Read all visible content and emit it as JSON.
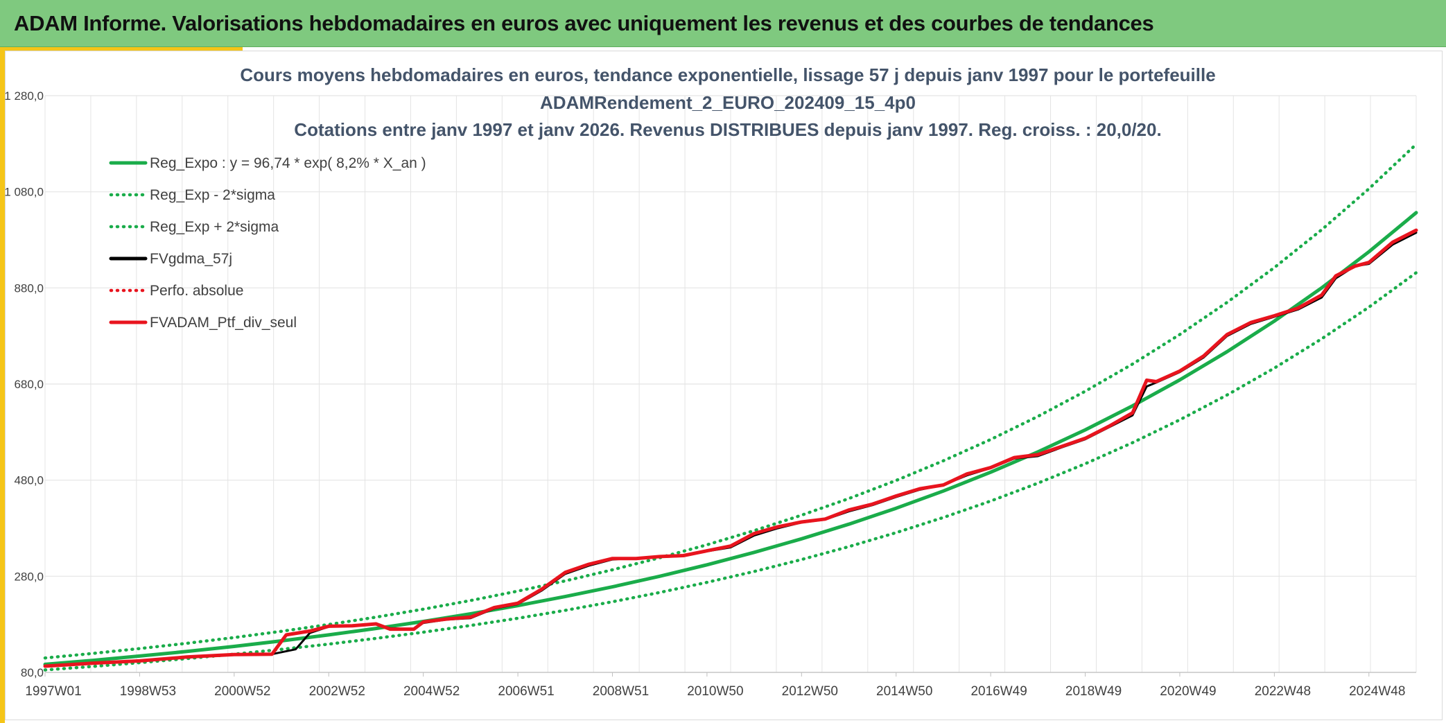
{
  "banner": {
    "title": "ADAM Informe. Valorisations hebdomadaires en euros avec uniquement les revenus et des courbes de tendances"
  },
  "colors": {
    "banner_bg": "#7fc97f",
    "accent": "#f5c518",
    "trend": "#1aac4a",
    "portfolio": "#e8141e",
    "smooth": "#000000",
    "grid": "#e4e4e4",
    "title": "#44546a"
  },
  "chart_data": {
    "type": "line",
    "title": [
      "Cours moyens hebdomadaires en euros, tendance exponentielle, lissage 57 j depuis janv 1997 pour le portefeuille",
      "ADAMRendement_2_EURO_202409_15_4p0",
      "Cotations entre janv 1997 et janv 2026. Revenus DISTRIBUES depuis janv 1997. Reg. croiss. : 20,0/20."
    ],
    "xlabel": "",
    "ylabel": "",
    "xlim": [
      1997.0,
      2026.0
    ],
    "ylim": [
      80,
      1280
    ],
    "ytick_values": [
      80,
      280,
      480,
      680,
      880,
      1080,
      1280
    ],
    "ytick_labels": [
      "80,0",
      "280,0",
      "480,0",
      "680,0",
      "880,0",
      "1 080,0",
      "1 280,0"
    ],
    "xtick_values": [
      1997.0,
      1999.0,
      2001.0,
      2003.0,
      2005.0,
      2007.0,
      2009.0,
      2011.0,
      2013.0,
      2015.0,
      2017.0,
      2019.0,
      2021.0,
      2023.0,
      2025.0
    ],
    "xtick_labels": [
      "1997W01",
      "1998W53",
      "2000W52",
      "2002W52",
      "2004W52",
      "2006W51",
      "2008W51",
      "2010W50",
      "2012W50",
      "2014W50",
      "2016W49",
      "2018W49",
      "2020W49",
      "2022W48",
      "2024W48"
    ],
    "grid": true,
    "legend_position": "top-left",
    "legend": [
      {
        "label": "Reg_Expo : y = 96,74 * exp( 8,2% *  X_an )",
        "style": "solid",
        "color": "#1aac4a"
      },
      {
        "label": "Reg_Exp - 2*sigma",
        "style": "dotted",
        "color": "#1aac4a"
      },
      {
        "label": "Reg_Exp + 2*sigma",
        "style": "dotted",
        "color": "#1aac4a"
      },
      {
        "label": "FVgdma_57j",
        "style": "solid",
        "color": "#000000"
      },
      {
        "label": "Perfo. absolue",
        "style": "dotted",
        "color": "#e8141e"
      },
      {
        "label": "FVADAM_Ptf_div_seul",
        "style": "solid",
        "color": "#e8141e"
      }
    ],
    "series": [
      {
        "name": "Reg_Expo",
        "x": [
          1997.0,
          1998.0,
          1999.0,
          2000.0,
          2001.0,
          2002.0,
          2003.0,
          2004.0,
          2005.0,
          2006.0,
          2007.0,
          2008.0,
          2009.0,
          2010.0,
          2011.0,
          2012.0,
          2013.0,
          2014.0,
          2015.0,
          2016.0,
          2017.0,
          2018.0,
          2019.0,
          2020.0,
          2021.0,
          2022.0,
          2023.0,
          2024.0,
          2025.0,
          2026.0
        ],
        "values": [
          96.7,
          105.0,
          114.0,
          123.6,
          134.1,
          145.6,
          158.0,
          171.4,
          186.0,
          201.9,
          219.1,
          237.8,
          258.0,
          280.0,
          303.9,
          329.8,
          357.9,
          388.4,
          421.5,
          457.5,
          496.5,
          538.8,
          584.7,
          634.5,
          688.6,
          747.3,
          811.0,
          880.1,
          955.2,
          1036.6
        ]
      },
      {
        "name": "Reg_Exp - 2*sigma",
        "x": [
          1997.0,
          1998.0,
          1999.0,
          2000.0,
          2001.0,
          2002.0,
          2003.0,
          2004.0,
          2005.0,
          2006.0,
          2007.0,
          2008.0,
          2009.0,
          2010.0,
          2011.0,
          2012.0,
          2013.0,
          2014.0,
          2015.0,
          2016.0,
          2017.0,
          2018.0,
          2019.0,
          2020.0,
          2021.0,
          2022.0,
          2023.0,
          2024.0,
          2025.0,
          2026.0
        ],
        "values": [
          85.0,
          92.3,
          100.2,
          108.7,
          118.0,
          128.0,
          138.9,
          150.8,
          163.6,
          177.6,
          192.7,
          209.1,
          226.9,
          246.3,
          267.3,
          290.0,
          314.8,
          341.6,
          370.7,
          402.3,
          436.6,
          473.8,
          514.2,
          558.0,
          605.6,
          657.2,
          713.2,
          774.0,
          840.0,
          911.6
        ]
      },
      {
        "name": "Reg_Exp + 2*sigma",
        "x": [
          1997.0,
          1998.0,
          1999.0,
          2000.0,
          2001.0,
          2002.0,
          2003.0,
          2004.0,
          2005.0,
          2006.0,
          2007.0,
          2008.0,
          2009.0,
          2010.0,
          2011.0,
          2012.0,
          2013.0,
          2014.0,
          2015.0,
          2016.0,
          2017.0,
          2018.0,
          2019.0,
          2020.0,
          2021.0,
          2022.0,
          2023.0,
          2024.0,
          2025.0,
          2026.0
        ],
        "values": [
          110.0,
          119.4,
          129.6,
          140.6,
          152.6,
          165.6,
          179.7,
          195.0,
          211.6,
          229.6,
          249.2,
          270.4,
          293.5,
          318.5,
          345.6,
          375.1,
          407.1,
          441.8,
          479.4,
          520.3,
          564.6,
          612.7,
          665.0,
          721.6,
          783.1,
          849.9,
          922.3,
          1000.9,
          1086.3,
          1178.9
        ]
      },
      {
        "name": "FVgdma_57j",
        "x": [
          1997.0,
          1998.0,
          1999.0,
          2000.0,
          2001.0,
          2001.8,
          2002.3,
          2002.6,
          2003.0,
          2003.5,
          2004.0,
          2004.3,
          2004.8,
          2005.0,
          2005.5,
          2006.0,
          2006.5,
          2007.0,
          2007.5,
          2008.0,
          2008.5,
          2009.0,
          2009.5,
          2010.0,
          2010.5,
          2011.0,
          2011.5,
          2012.0,
          2012.5,
          2013.0,
          2013.5,
          2014.0,
          2014.5,
          2015.0,
          2015.5,
          2016.0,
          2016.5,
          2017.0,
          2017.5,
          2018.0,
          2018.5,
          2019.0,
          2019.5,
          2020.0,
          2020.3,
          2020.5,
          2021.0,
          2021.5,
          2022.0,
          2022.5,
          2023.0,
          2023.5,
          2024.0,
          2024.3,
          2024.7,
          2025.0,
          2025.5,
          2026.0
        ],
        "values": [
          93,
          99,
          104,
          112,
          117,
          118,
          128,
          162,
          175,
          178,
          180,
          172,
          170,
          183,
          190,
          193,
          213,
          222,
          250,
          285,
          302,
          315,
          318,
          320,
          322,
          332,
          340,
          365,
          380,
          392,
          398,
          415,
          428,
          445,
          460,
          470,
          490,
          505,
          525,
          530,
          548,
          565,
          590,
          615,
          675,
          683,
          705,
          735,
          780,
          805,
          820,
          835,
          860,
          900,
          925,
          930,
          970,
          995
        ]
      },
      {
        "name": "FVADAM_Ptf_div_seul",
        "x": [
          1997.0,
          1998.0,
          1999.0,
          2000.0,
          2001.0,
          2001.8,
          2002.1,
          2002.6,
          2003.0,
          2003.5,
          2004.0,
          2004.3,
          2004.8,
          2005.0,
          2005.5,
          2006.0,
          2006.5,
          2007.0,
          2007.5,
          2008.0,
          2008.5,
          2009.0,
          2009.5,
          2010.0,
          2010.5,
          2011.0,
          2011.5,
          2012.0,
          2012.5,
          2013.0,
          2013.5,
          2014.0,
          2014.5,
          2015.0,
          2015.5,
          2016.0,
          2016.5,
          2017.0,
          2017.5,
          2018.0,
          2018.5,
          2019.0,
          2019.5,
          2020.0,
          2020.3,
          2020.5,
          2021.0,
          2021.5,
          2022.0,
          2022.5,
          2023.0,
          2023.5,
          2024.0,
          2024.3,
          2024.7,
          2025.0,
          2025.5,
          2026.0
        ],
        "values": [
          93,
          99,
          104,
          112,
          117,
          118,
          158,
          166,
          176,
          177,
          181,
          170,
          170,
          185,
          191,
          195,
          215,
          224,
          253,
          288,
          305,
          317,
          317,
          321,
          323,
          333,
          343,
          369,
          383,
          393,
          399,
          418,
          430,
          447,
          462,
          470,
          493,
          506,
          527,
          533,
          550,
          567,
          592,
          620,
          688,
          685,
          707,
          738,
          783,
          808,
          822,
          838,
          865,
          905,
          925,
          933,
          975,
          1000
        ]
      }
    ]
  }
}
